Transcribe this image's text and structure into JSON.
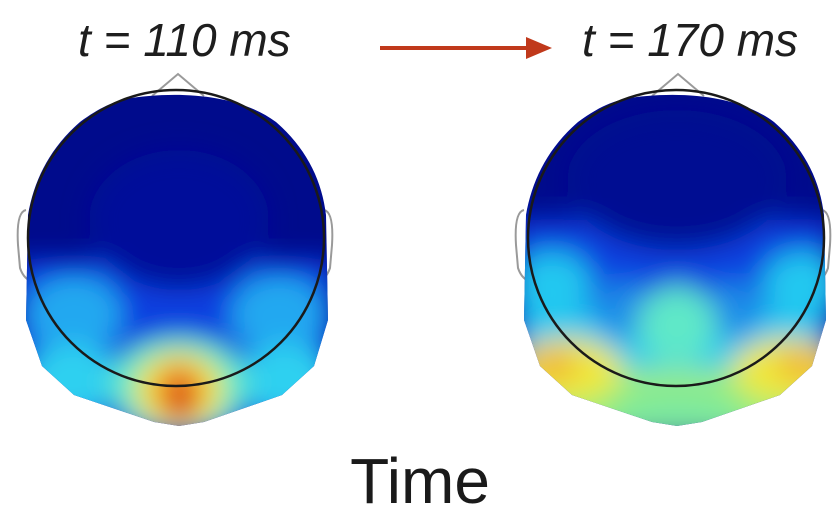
{
  "labels": {
    "left_time": "t = 110 ms",
    "right_time": "t = 170 ms",
    "axis": "Time"
  },
  "colors": {
    "arrow": "#c0391b",
    "outline": "#1a1a1a",
    "ear_nose": "#9a9a9a",
    "map_low": "#000b8c",
    "map_mid_low": "#0a3fe0",
    "map_mid": "#24c8f0",
    "map_cyan_green": "#5fe8c8",
    "map_yellow": "#f0e83a",
    "map_orange": "#f0902a",
    "map_high": "#d0200a"
  },
  "icons": {
    "arrow": "right-arrow-icon",
    "head": "scalp-topomap-icon"
  }
}
